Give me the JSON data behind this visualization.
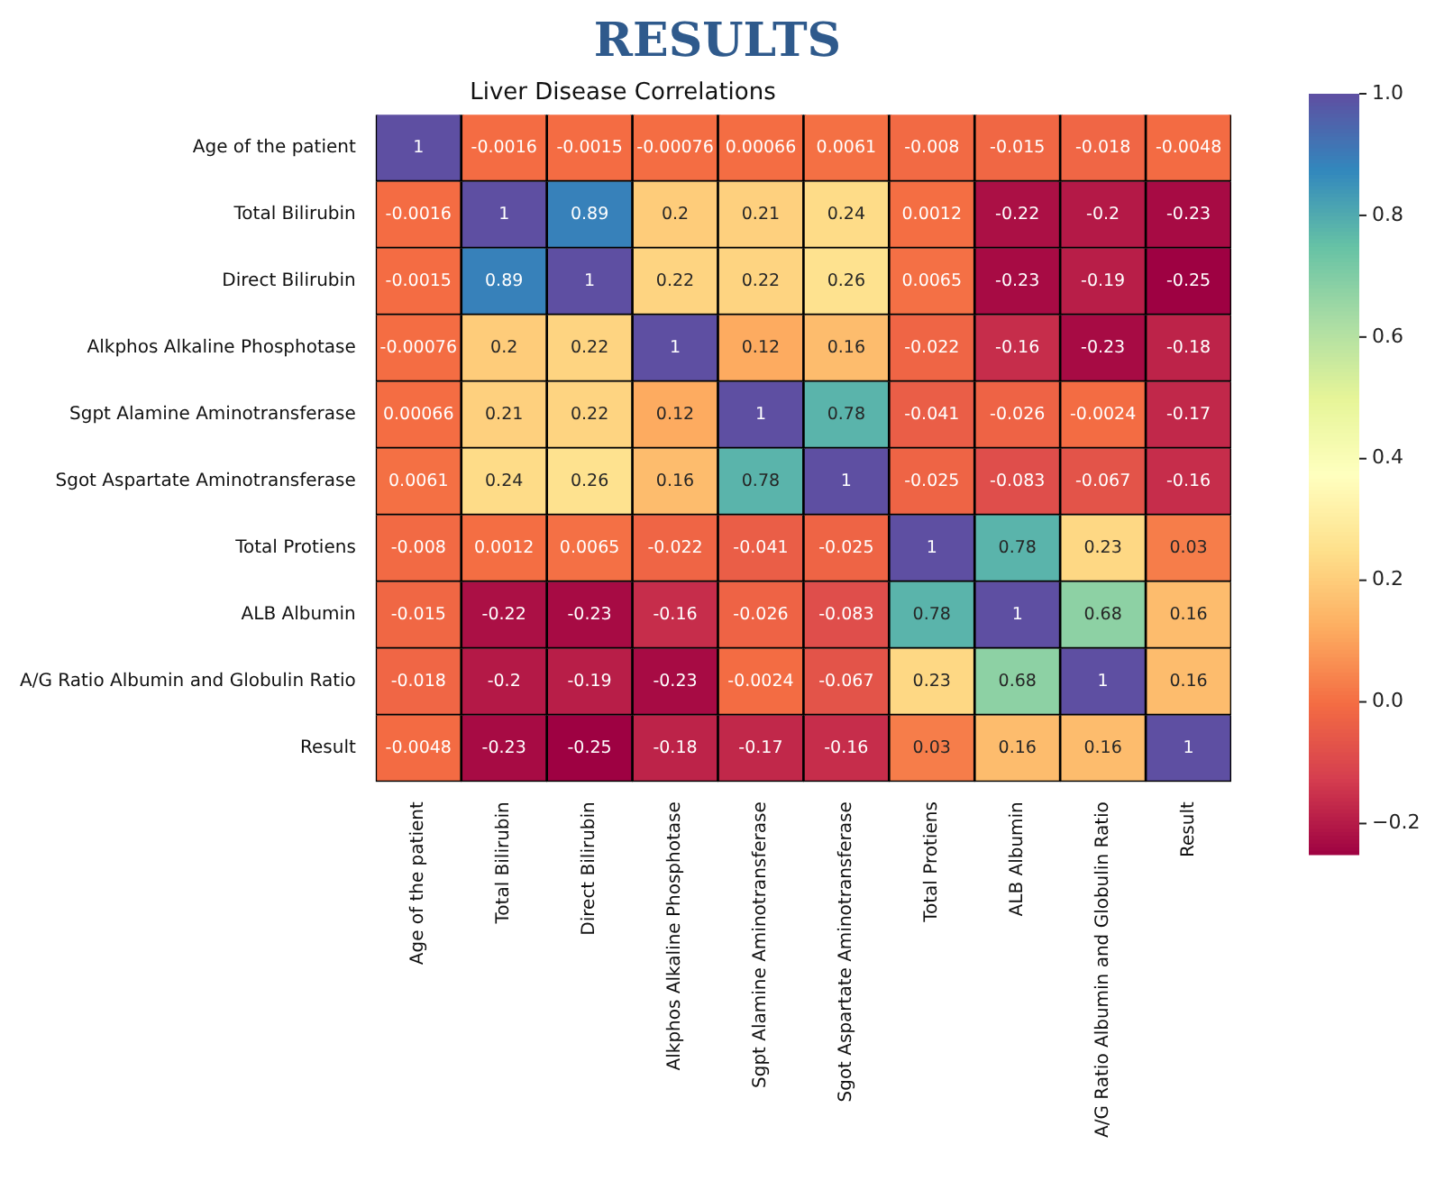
{
  "chart_data": {
    "type": "heatmap",
    "title": "Liver Disease Correlations",
    "subtitle": "RESULTS",
    "categories": [
      "Age of the patient",
      "Total Bilirubin",
      "Direct Bilirubin",
      "Alkphos Alkaline Phosphotase",
      "Sgpt Alamine Aminotransferase",
      "Sgot Aspartate Aminotransferase",
      "Total Protiens",
      "ALB Albumin",
      "A/G Ratio Albumin and Globulin Ratio",
      "Result"
    ],
    "y_categories": [
      "Age of the patient",
      "Total Bilirubin",
      "Direct Bilirubin",
      "Alkphos Alkaline Phosphotase",
      "Sgpt Alamine Aminotransferase",
      "Sgot Aspartate Aminotransferase",
      "Total Protiens",
      "ALB Albumin",
      "A/G Ratio Albumin and Globulin Ratio",
      "Result"
    ],
    "cells": [
      [
        1,
        -0.0016,
        -0.0015,
        -0.00076,
        0.00066,
        0.0061,
        -0.008,
        -0.015,
        -0.018,
        -0.0048
      ],
      [
        -0.0016,
        1,
        0.89,
        0.2,
        0.21,
        0.24,
        0.0012,
        -0.22,
        -0.2,
        -0.23
      ],
      [
        -0.0015,
        0.89,
        1,
        0.22,
        0.22,
        0.26,
        0.0065,
        -0.23,
        -0.19,
        -0.25
      ],
      [
        -0.00076,
        0.2,
        0.22,
        1,
        0.12,
        0.16,
        -0.022,
        -0.16,
        -0.23,
        -0.18
      ],
      [
        0.00066,
        0.21,
        0.22,
        0.12,
        1,
        0.78,
        -0.041,
        -0.026,
        -0.0024,
        -0.17
      ],
      [
        0.0061,
        0.24,
        0.26,
        0.16,
        0.78,
        1,
        -0.025,
        -0.083,
        -0.067,
        -0.16
      ],
      [
        -0.008,
        0.0012,
        0.0065,
        -0.022,
        -0.041,
        -0.025,
        1,
        0.78,
        0.23,
        0.03
      ],
      [
        -0.015,
        -0.22,
        -0.23,
        -0.16,
        -0.026,
        -0.083,
        0.78,
        1,
        0.68,
        0.16
      ],
      [
        -0.018,
        -0.2,
        -0.19,
        -0.23,
        -0.0024,
        -0.067,
        0.23,
        0.68,
        1,
        0.16
      ],
      [
        -0.0048,
        -0.23,
        -0.25,
        -0.18,
        -0.17,
        -0.16,
        0.03,
        0.16,
        0.16,
        1
      ]
    ],
    "clim": [
      -0.25,
      1
    ],
    "cticks": [
      {
        "value": -0.2,
        "label": "−0.2"
      },
      {
        "value": 0,
        "label": "0.0"
      },
      0.2,
      0.4,
      0.6,
      0.8,
      {
        "value": 1,
        "label": "1.0"
      }
    ],
    "data_labels": true
  }
}
